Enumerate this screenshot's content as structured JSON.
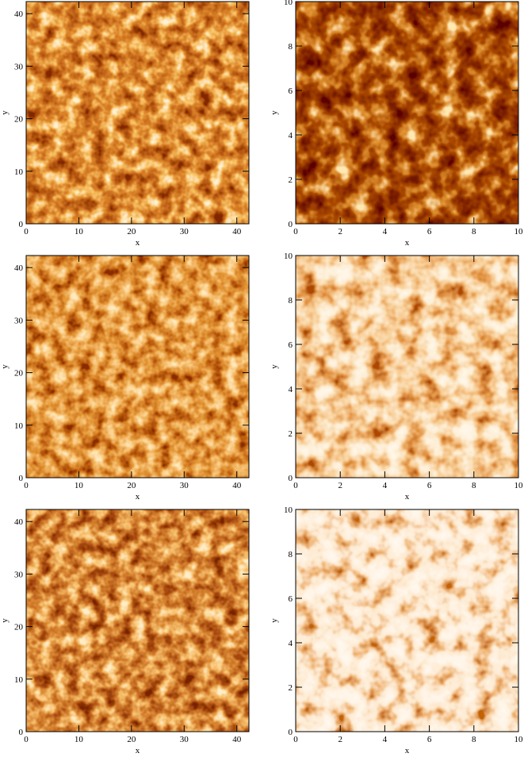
{
  "chart_data": [
    {
      "type": "heatmap",
      "xlabel": "x",
      "ylabel": "y",
      "xlim": [
        0,
        42.3
      ],
      "ylim": [
        0,
        42.3
      ],
      "xticks": [
        0,
        10,
        20,
        30,
        40
      ],
      "yticks": [
        0,
        10,
        20,
        30,
        40
      ],
      "colormap": [
        "#3a0500",
        "#7a1a02",
        "#b83c06",
        "#f08a20",
        "#ffe0a0"
      ]
    },
    {
      "type": "heatmap",
      "xlabel": "x",
      "ylabel": "y",
      "xlim": [
        0,
        10
      ],
      "ylim": [
        0,
        10
      ],
      "xticks": [
        0,
        2,
        4,
        6,
        8,
        10
      ],
      "yticks": [
        0,
        2,
        4,
        6,
        8,
        10
      ],
      "colormap": [
        "#1a0000",
        "#3a0500",
        "#6a1200",
        "#c04a08",
        "#ffd070"
      ]
    },
    {
      "type": "heatmap",
      "xlabel": "x",
      "ylabel": "y",
      "xlim": [
        0,
        42.3
      ],
      "ylim": [
        0,
        42.3
      ],
      "xticks": [
        0,
        10,
        20,
        30,
        40
      ],
      "yticks": [
        0,
        10,
        20,
        30,
        40
      ],
      "colormap": [
        "#400600",
        "#8a2002",
        "#c8500a",
        "#f09030",
        "#ffd080"
      ]
    },
    {
      "type": "heatmap",
      "xlabel": "x",
      "ylabel": "y",
      "xlim": [
        0,
        10
      ],
      "ylim": [
        0,
        10
      ],
      "xticks": [
        0,
        2,
        4,
        6,
        8,
        10
      ],
      "yticks": [
        0,
        2,
        4,
        6,
        8,
        10
      ],
      "colormap": [
        "#ffeccc",
        "#fbd9a8",
        "#f0a050",
        "#c85010",
        "#6a1000"
      ]
    },
    {
      "type": "heatmap",
      "xlabel": "x",
      "ylabel": "y",
      "xlim": [
        0,
        42.3
      ],
      "ylim": [
        0,
        42.3
      ],
      "xticks": [
        0,
        10,
        20,
        30,
        40
      ],
      "yticks": [
        0,
        10,
        20,
        30,
        40
      ],
      "colormap": [
        "#300400",
        "#6a1402",
        "#b03c08",
        "#f08a28",
        "#ffd890"
      ]
    },
    {
      "type": "heatmap",
      "xlabel": "x",
      "ylabel": "y",
      "xlim": [
        0,
        10
      ],
      "ylim": [
        0,
        10
      ],
      "xticks": [
        0,
        2,
        4,
        6,
        8,
        10
      ],
      "yticks": [
        0,
        2,
        4,
        6,
        8,
        10
      ],
      "colormap": [
        "#fff0dc",
        "#ffe6c8",
        "#fbd0a0",
        "#e07a30",
        "#8a2000"
      ]
    }
  ]
}
